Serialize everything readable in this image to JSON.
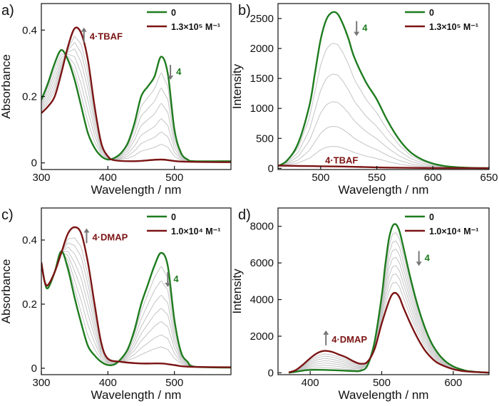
{
  "colors": {
    "green": "#1e7b1e",
    "red": "#7b1414",
    "gray": "#c4c4c4",
    "arrow": "#777777"
  },
  "chart_data": [
    {
      "panel_label": "a)",
      "type": "line",
      "xlabel": "Wavelength / nm",
      "ylabel": "Absorbance",
      "xlim": [
        300,
        585
      ],
      "ylim": [
        -0.02,
        0.48
      ],
      "xticks": [
        300,
        400,
        500
      ],
      "yticks": [
        0,
        0.2,
        0.4
      ],
      "ytick_labels": [
        "0",
        "0.2",
        "0.4"
      ],
      "legend": {
        "position": "top-right",
        "entries": [
          {
            "label": "0",
            "color": "green"
          },
          {
            "label": "1.3×10⁵ M⁻¹",
            "color": "red"
          }
        ]
      },
      "annotations": [
        {
          "text": "4·TBAF",
          "x": 364,
          "y": 0.382,
          "color": "red",
          "arrow": "up"
        },
        {
          "text": "4",
          "x": 494,
          "y": 0.276,
          "color": "green",
          "arrow": "down"
        }
      ],
      "series": [
        {
          "name": "0",
          "color": "green",
          "x": [
            300,
            310,
            320,
            330,
            340,
            350,
            360,
            370,
            380,
            390,
            400,
            410,
            420,
            430,
            440,
            450,
            460,
            470,
            480,
            490,
            500,
            510,
            520,
            530,
            585
          ],
          "y": [
            0.19,
            0.24,
            0.3,
            0.34,
            0.31,
            0.25,
            0.17,
            0.09,
            0.045,
            0.02,
            0.01,
            0.015,
            0.03,
            0.06,
            0.12,
            0.2,
            0.23,
            0.26,
            0.32,
            0.27,
            0.1,
            0.03,
            0.01,
            0.005,
            0.005
          ]
        },
        {
          "name": "1.3×10⁵ M⁻¹",
          "color": "red",
          "x": [
            300,
            310,
            320,
            330,
            340,
            350,
            360,
            370,
            380,
            390,
            400,
            410,
            440,
            480,
            510,
            585
          ],
          "y": [
            0.15,
            0.17,
            0.2,
            0.27,
            0.35,
            0.405,
            0.39,
            0.31,
            0.17,
            0.06,
            0.02,
            0.008,
            0.005,
            0.01,
            0.004,
            0.002
          ]
        }
      ]
    },
    {
      "panel_label": "b)",
      "type": "line",
      "xlabel": "Wavelength / nm",
      "ylabel": "Intensity",
      "xlim": [
        462,
        650
      ],
      "ylim": [
        -20,
        2750
      ],
      "xticks": [
        500,
        550,
        600,
        650
      ],
      "yticks": [
        0,
        500,
        1000,
        1500,
        2000,
        2500
      ],
      "legend": {
        "position": "top-right",
        "entries": [
          {
            "label": "0",
            "color": "green"
          },
          {
            "label": "1.3×10⁵ M⁻¹",
            "color": "red"
          }
        ]
      },
      "annotations": [
        {
          "text": "4",
          "x": 532,
          "y": 2350,
          "color": "green",
          "arrow": "down"
        },
        {
          "text": "4·TBAF",
          "x": 504,
          "y": 140,
          "color": "red",
          "arrow": "none"
        }
      ],
      "series": [
        {
          "name": "0",
          "color": "green",
          "x": [
            462,
            470,
            480,
            490,
            495,
            500,
            505,
            510,
            515,
            520,
            525,
            530,
            540,
            550,
            560,
            570,
            580,
            590,
            600,
            610,
            620,
            630,
            640,
            650
          ],
          "y": [
            40,
            130,
            420,
            1050,
            1600,
            2150,
            2480,
            2600,
            2580,
            2400,
            2150,
            1850,
            1450,
            1150,
            780,
            480,
            270,
            150,
            80,
            40,
            20,
            10,
            5,
            3
          ]
        },
        {
          "name": "1.3×10⁵ M⁻¹",
          "color": "red",
          "x": [
            462,
            480,
            500,
            520,
            540,
            560,
            600,
            650
          ],
          "y": [
            45,
            40,
            35,
            30,
            20,
            12,
            5,
            2
          ]
        }
      ]
    },
    {
      "panel_label": "c)",
      "type": "line",
      "xlabel": "Wavelength / nm",
      "ylabel": "Absorbance",
      "xlim": [
        300,
        585
      ],
      "ylim": [
        -0.02,
        0.5
      ],
      "xticks": [
        300,
        400,
        500
      ],
      "yticks": [
        0,
        0.2,
        0.4
      ],
      "ytick_labels": [
        "0",
        "0.2",
        "0.4"
      ],
      "legend": {
        "position": "top-right",
        "entries": [
          {
            "label": "0",
            "color": "green"
          },
          {
            "label": "1.0×10⁴ M⁻¹",
            "color": "red"
          }
        ]
      },
      "annotations": [
        {
          "text": "4·DMAP",
          "x": 368,
          "y": 0.41,
          "color": "red",
          "arrow": "up"
        },
        {
          "text": "4",
          "x": 490,
          "y": 0.28,
          "color": "green",
          "arrow": "down"
        }
      ],
      "series": [
        {
          "name": "0",
          "color": "green",
          "x": [
            300,
            305,
            310,
            320,
            330,
            340,
            350,
            360,
            370,
            380,
            390,
            400,
            410,
            420,
            430,
            440,
            450,
            460,
            470,
            480,
            490,
            500,
            510,
            520,
            530,
            585
          ],
          "y": [
            0.33,
            0.27,
            0.25,
            0.3,
            0.365,
            0.31,
            0.22,
            0.14,
            0.07,
            0.04,
            0.02,
            0.01,
            0.012,
            0.03,
            0.06,
            0.12,
            0.2,
            0.26,
            0.32,
            0.36,
            0.32,
            0.15,
            0.05,
            0.02,
            0.005,
            0.002
          ]
        },
        {
          "name": "1.0×10⁴ M⁻¹",
          "color": "red",
          "x": [
            300,
            305,
            310,
            320,
            330,
            340,
            350,
            360,
            370,
            380,
            390,
            400,
            420,
            450,
            480,
            500,
            520,
            585
          ],
          "y": [
            0.33,
            0.27,
            0.26,
            0.3,
            0.36,
            0.42,
            0.44,
            0.42,
            0.33,
            0.2,
            0.08,
            0.03,
            0.02,
            0.015,
            0.015,
            0.01,
            0.005,
            0.003
          ]
        }
      ]
    },
    {
      "panel_label": "d)",
      "type": "line",
      "xlabel": "Wavelength / nm",
      "ylabel": "Intensity",
      "xlim": [
        355,
        650
      ],
      "ylim": [
        -100,
        9000
      ],
      "xticks": [
        400,
        500,
        600
      ],
      "yticks": [
        0,
        2000,
        4000,
        6000,
        8000
      ],
      "legend": {
        "position": "top-right",
        "entries": [
          {
            "label": "0",
            "color": "green"
          },
          {
            "label": "1.0×10⁴ M⁻¹",
            "color": "red"
          }
        ]
      },
      "annotations": [
        {
          "text": "4·DMAP",
          "x": 422,
          "y": 1850,
          "color": "red",
          "arrow": "up"
        },
        {
          "text": "4",
          "x": 552,
          "y": 6300,
          "color": "green",
          "arrow": "down"
        }
      ],
      "series": [
        {
          "name": "0",
          "color": "green",
          "x": [
            370,
            380,
            390,
            400,
            420,
            440,
            460,
            470,
            480,
            490,
            500,
            505,
            510,
            515,
            520,
            525,
            530,
            540,
            550,
            560,
            570,
            580,
            590,
            600,
            610,
            620,
            640,
            650
          ],
          "y": [
            0,
            60,
            120,
            160,
            160,
            130,
            100,
            110,
            400,
            1700,
            4200,
            5900,
            7300,
            8000,
            8100,
            7700,
            6900,
            5200,
            3700,
            2500,
            1600,
            1000,
            600,
            350,
            200,
            100,
            30,
            10
          ]
        },
        {
          "name": "1.0×10⁴ M⁻¹",
          "color": "red",
          "x": [
            370,
            380,
            390,
            400,
            410,
            420,
            430,
            440,
            450,
            460,
            470,
            480,
            490,
            500,
            510,
            515,
            520,
            525,
            530,
            540,
            550,
            560,
            570,
            580,
            600,
            620,
            650
          ],
          "y": [
            20,
            150,
            450,
            800,
            1080,
            1200,
            1150,
            1000,
            850,
            640,
            500,
            600,
            1300,
            2700,
            3900,
            4300,
            4350,
            4100,
            3600,
            2700,
            1900,
            1250,
            800,
            500,
            200,
            70,
            10
          ]
        }
      ]
    }
  ]
}
